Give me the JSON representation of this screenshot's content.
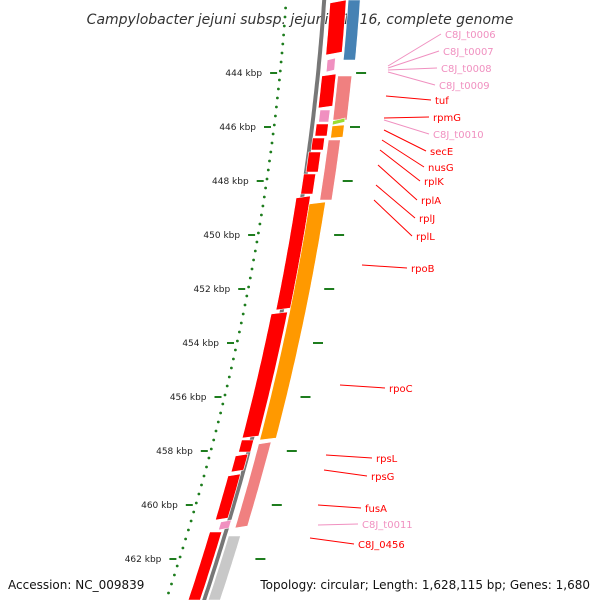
{
  "title": "Campylobacter jejuni subsp. jejuni 81116, complete genome",
  "accession_text": "Accession: NC_009839",
  "summary_text": "Topology: circular; Length: 1,628,115 bp; Genes: 1,680",
  "ticks": [
    {
      "kbp": 444,
      "label": "444 kbp"
    },
    {
      "kbp": 446,
      "label": "446 kbp"
    },
    {
      "kbp": 448,
      "label": "448 kbp"
    },
    {
      "kbp": 450,
      "label": "450 kbp"
    },
    {
      "kbp": 452,
      "label": "452 kbp"
    },
    {
      "kbp": 454,
      "label": "454 kbp"
    },
    {
      "kbp": 456,
      "label": "456 kbp"
    },
    {
      "kbp": 458,
      "label": "458 kbp"
    },
    {
      "kbp": 460,
      "label": "460 kbp"
    },
    {
      "kbp": 462,
      "label": "462 kbp"
    }
  ],
  "gene_labels": [
    {
      "text": "C8J_t0006",
      "kind": "rna"
    },
    {
      "text": "C8J_t0007",
      "kind": "rna"
    },
    {
      "text": "C8J_t0008",
      "kind": "rna"
    },
    {
      "text": "C8J_t0009",
      "kind": "rna"
    },
    {
      "text": "tuf",
      "kind": "cds"
    },
    {
      "text": "rpmG",
      "kind": "cds"
    },
    {
      "text": "C8J_t0010",
      "kind": "rna"
    },
    {
      "text": "secE",
      "kind": "cds"
    },
    {
      "text": "nusG",
      "kind": "cds"
    },
    {
      "text": "rplK",
      "kind": "cds"
    },
    {
      "text": "rplA",
      "kind": "cds"
    },
    {
      "text": "rplJ",
      "kind": "cds"
    },
    {
      "text": "rplL",
      "kind": "cds"
    },
    {
      "text": "rpoB",
      "kind": "cds"
    },
    {
      "text": "rpoC",
      "kind": "cds"
    },
    {
      "text": "rpsL",
      "kind": "cds"
    },
    {
      "text": "rpsG",
      "kind": "cds"
    },
    {
      "text": "fusA",
      "kind": "cds"
    },
    {
      "text": "C8J_t0011",
      "kind": "rna"
    },
    {
      "text": "C8J_0456",
      "kind": "cds"
    }
  ],
  "colors": {
    "cds": "#ff0000",
    "rna": "#f090c0",
    "backbone": "#777777",
    "tick": "#1e7d1e",
    "gc_skew": "#1e7d1e",
    "orange_feature": "#ff9900",
    "pink_feature": "#f08080",
    "blue_feature": "#4682b4",
    "gray_feature": "#c8c8c8",
    "green_feature": "#99dd33"
  }
}
